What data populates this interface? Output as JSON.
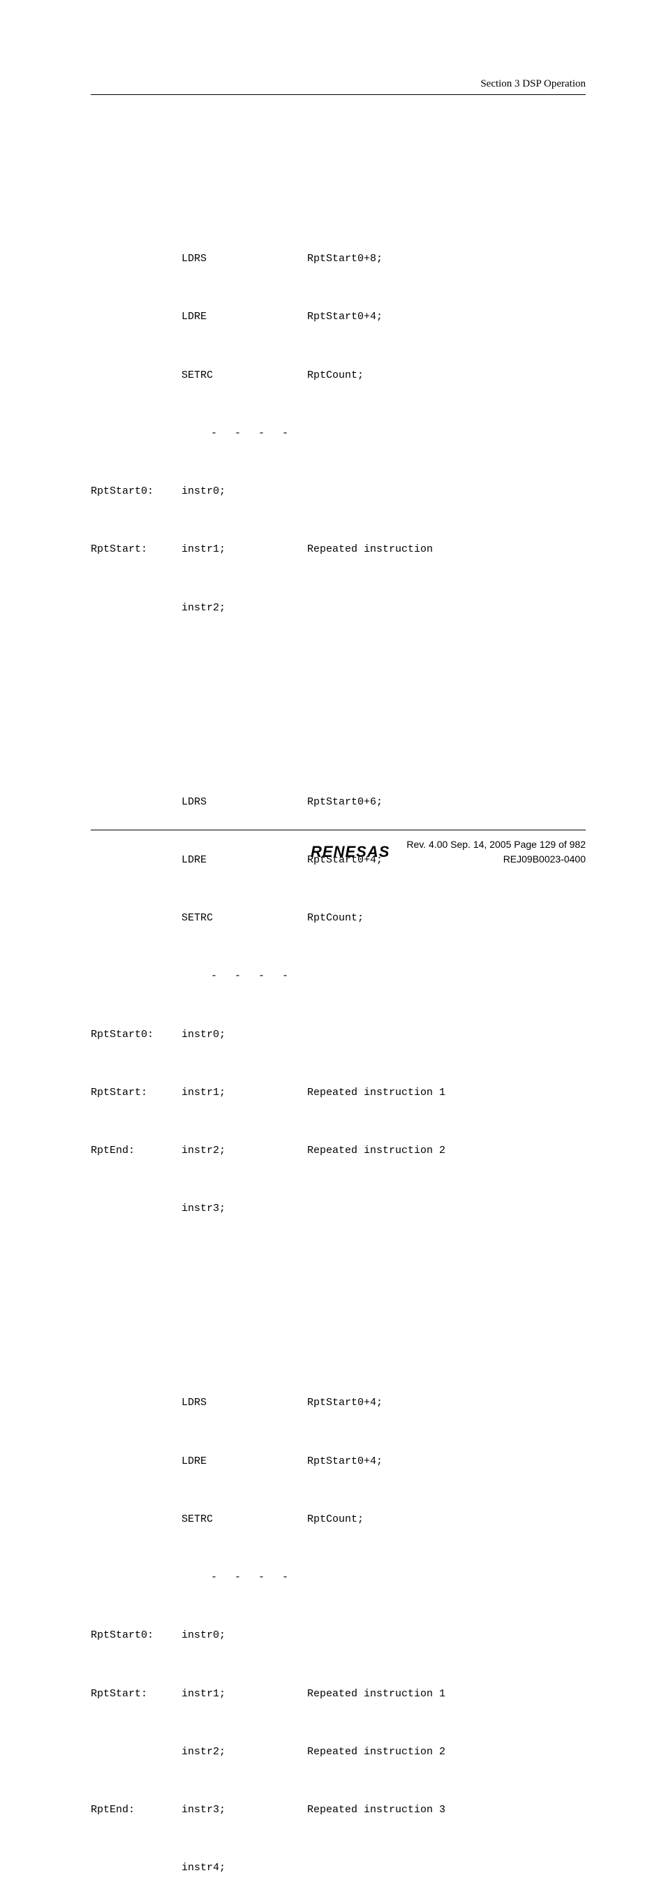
{
  "header": {
    "section_label": "Section 3   DSP Operation"
  },
  "blocks": [
    {
      "rows": [
        {
          "label": "",
          "instr": "LDRS",
          "comment": "RptStart0+8;"
        },
        {
          "label": "",
          "instr": "LDRE",
          "comment": "RptStart0+4;"
        },
        {
          "label": "",
          "instr": "SETRC",
          "comment": "RptCount;"
        }
      ],
      "dashes": "- - - -",
      "after": [
        {
          "label": "RptStart0:",
          "instr": "instr0;",
          "comment": ""
        },
        {
          "label": "RptStart:",
          "instr": "instr1;",
          "comment": "Repeated instruction"
        },
        {
          "label": "",
          "instr": "instr2;",
          "comment": ""
        }
      ]
    },
    {
      "rows": [
        {
          "label": "",
          "instr": "LDRS",
          "comment": "RptStart0+6;"
        },
        {
          "label": "",
          "instr": "LDRE",
          "comment": "RptStart0+4;"
        },
        {
          "label": "",
          "instr": "SETRC",
          "comment": "RptCount;"
        }
      ],
      "dashes": "- - - -",
      "after": [
        {
          "label": "RptStart0:",
          "instr": "instr0;",
          "comment": ""
        },
        {
          "label": "RptStart:",
          "instr": "instr1;",
          "comment": "Repeated instruction 1"
        },
        {
          "label": "RptEnd:",
          "instr": "instr2;",
          "comment": "Repeated instruction 2"
        },
        {
          "label": "",
          "instr": "instr3;",
          "comment": ""
        }
      ]
    },
    {
      "rows": [
        {
          "label": "",
          "instr": "LDRS",
          "comment": "RptStart0+4;"
        },
        {
          "label": "",
          "instr": "LDRE",
          "comment": "RptStart0+4;"
        },
        {
          "label": "",
          "instr": "SETRC",
          "comment": "RptCount;"
        }
      ],
      "dashes": "- - - -",
      "after": [
        {
          "label": "RptStart0:",
          "instr": "instr0;",
          "comment": ""
        },
        {
          "label": "RptStart:",
          "instr": "instr1;",
          "comment": "Repeated instruction 1"
        },
        {
          "label": "",
          "instr": "instr2;",
          "comment": "Repeated instruction 2"
        },
        {
          "label": "RptEnd:",
          "instr": "instr3;",
          "comment": "Repeated instruction 3"
        },
        {
          "label": "",
          "instr": "instr4;",
          "comment": ""
        }
      ]
    }
  ],
  "footer": {
    "logo": "RENESAS",
    "line1": "Rev. 4.00  Sep. 14, 2005  Page 129 of 982",
    "line2": "REJ09B0023-0400"
  },
  "style": {
    "background_color": "#ffffff",
    "text_color": "#000000",
    "code_font": "Courier New",
    "body_font": "Times New Roman",
    "footer_font": "Arial",
    "code_fontsize": 15,
    "header_fontsize": 15,
    "footer_fontsize": 14,
    "logo_fontsize": 22,
    "col_label_width": 130,
    "col_instr_width": 180
  }
}
